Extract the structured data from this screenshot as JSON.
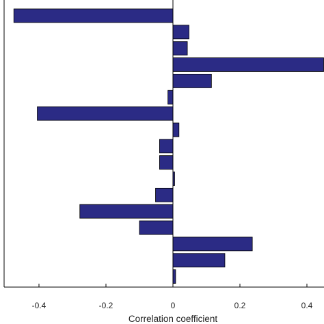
{
  "chart_data": {
    "type": "bar",
    "orientation": "horizontal",
    "xlabel": "Correlation coefficient",
    "ylabel": "",
    "title": "",
    "xlim": [
      -0.5,
      0.45
    ],
    "xticks": [
      -0.4,
      -0.2,
      0,
      0.2,
      0.4
    ],
    "xtick_labels": [
      "-0.4",
      "-0.2",
      "0",
      "0.2",
      "0.4"
    ],
    "values": [
      -0.475,
      0.048,
      0.043,
      0.45,
      0.115,
      -0.015,
      -0.405,
      0.018,
      -0.04,
      -0.04,
      0.005,
      -0.052,
      -0.278,
      -0.1,
      0.237,
      0.155,
      0.008
    ],
    "bar_color": "#2b2b85",
    "bar_edge_color": "#000000",
    "grid": false
  }
}
